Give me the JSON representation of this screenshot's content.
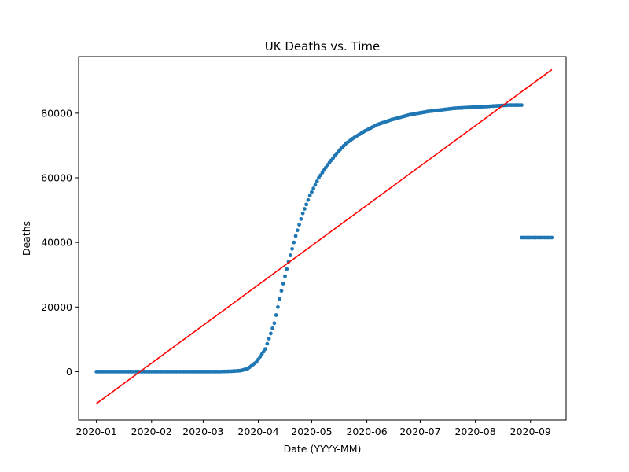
{
  "chart_data": {
    "type": "scatter",
    "title": "UK Deaths vs. Time",
    "xlabel": "Date (YYYY-MM)",
    "ylabel": "Deaths",
    "xlim": [
      "2019-12-22",
      "2020-09-21"
    ],
    "ylim": [
      -15000,
      97500
    ],
    "x_ticks": [
      "2020-01",
      "2020-02",
      "2020-03",
      "2020-04",
      "2020-05",
      "2020-06",
      "2020-07",
      "2020-08",
      "2020-09"
    ],
    "y_ticks": [
      0,
      20000,
      40000,
      60000,
      80000
    ],
    "grid": false,
    "legend": "none",
    "point_color": "#1f77b4",
    "line_color": "#ff0000",
    "series": [
      {
        "type": "scatter",
        "start_date": "2020-01-01",
        "end_date": "2020-08-27",
        "anchors": [
          [
            "2020-01-01",
            0
          ],
          [
            "2020-03-10",
            0
          ],
          [
            "2020-03-17",
            100
          ],
          [
            "2020-03-22",
            300
          ],
          [
            "2020-03-26",
            900
          ],
          [
            "2020-03-31",
            3000
          ],
          [
            "2020-04-05",
            7000
          ],
          [
            "2020-04-10",
            15000
          ],
          [
            "2020-04-14",
            25000
          ],
          [
            "2020-04-18",
            34000
          ],
          [
            "2020-04-22",
            42000
          ],
          [
            "2020-04-26",
            49000
          ],
          [
            "2020-04-30",
            54500
          ],
          [
            "2020-05-05",
            60000
          ],
          [
            "2020-05-10",
            64000
          ],
          [
            "2020-05-15",
            67500
          ],
          [
            "2020-05-20",
            70500
          ],
          [
            "2020-05-25",
            72500
          ],
          [
            "2020-05-31",
            74500
          ],
          [
            "2020-06-07",
            76500
          ],
          [
            "2020-06-15",
            78000
          ],
          [
            "2020-06-25",
            79500
          ],
          [
            "2020-07-05",
            80500
          ],
          [
            "2020-07-20",
            81500
          ],
          [
            "2020-08-05",
            82000
          ],
          [
            "2020-08-20",
            82500
          ],
          [
            "2020-08-27",
            82500
          ]
        ]
      },
      {
        "type": "scatter",
        "start_date": "2020-08-27",
        "end_date": "2020-09-13",
        "anchors": [
          [
            "2020-08-27",
            41500
          ],
          [
            "2020-09-13",
            41500
          ]
        ]
      },
      {
        "type": "line",
        "points": [
          [
            "2020-01-01",
            -9900
          ],
          [
            "2020-09-13",
            93500
          ]
        ]
      }
    ]
  }
}
